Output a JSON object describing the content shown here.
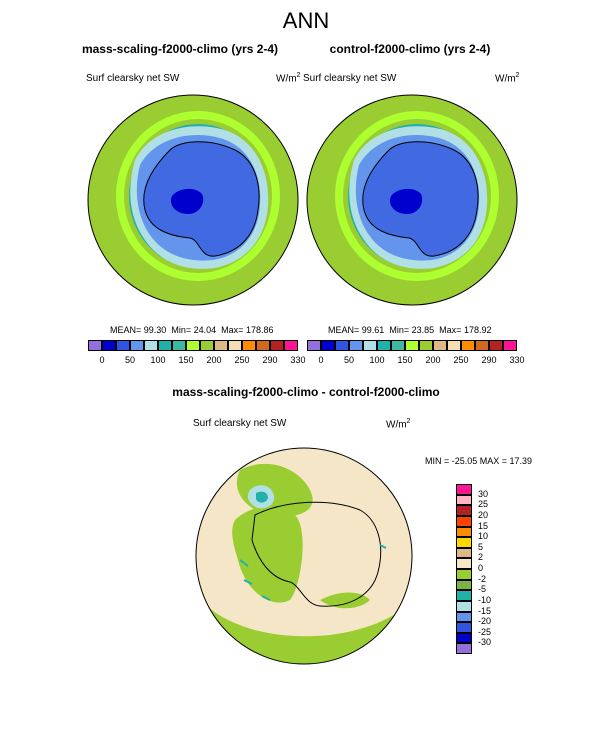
{
  "figure_title": "ANN",
  "panels": [
    {
      "title": "mass-scaling-f2000-climo (yrs 2-4)",
      "variable": "Surf clearsky net SW",
      "units_base": "W/m",
      "units_exp": "2",
      "stats": {
        "mean_label": "MEAN=",
        "mean": "99.30",
        "min_label": "Min=",
        "min": "24.04",
        "max_label": "Max=",
        "max": "178.86"
      }
    },
    {
      "title": "control-f2000-climo (yrs 2-4)",
      "variable": "Surf clearsky net SW",
      "units_base": "W/m",
      "units_exp": "2",
      "stats": {
        "mean_label": "MEAN=",
        "mean": "99.61",
        "min_label": "Min=",
        "min": "23.85",
        "max_label": "Max=",
        "max": "178.92"
      }
    }
  ],
  "abs_colorbar": {
    "colors": [
      "#9370db",
      "#0000cd",
      "#2f55e0",
      "#6495ed",
      "#b0e0e6",
      "#20b2aa",
      "#3cb9a0",
      "#adff2f",
      "#9acd32",
      "#deb887",
      "#f5deb3",
      "#ff8c00",
      "#d2691e",
      "#b22222",
      "#ff1493"
    ],
    "tick_labels": [
      "0",
      "50",
      "100",
      "150",
      "200",
      "250",
      "290",
      "330"
    ]
  },
  "diff_panel": {
    "title": "mass-scaling-f2000-climo - control-f2000-climo",
    "variable": "Surf clearsky net SW",
    "units_base": "W/m",
    "units_exp": "2",
    "minmax_text": "MIN = -25.05 MAX =  17.39"
  },
  "diff_colorbar": {
    "colors": [
      "#ff1493",
      "#ffb6c1",
      "#b22222",
      "#ff4500",
      "#ff8c00",
      "#ffd700",
      "#deb887",
      "#f5e6c8",
      "#9acd32",
      "#7cb342",
      "#20b2aa",
      "#b0e0e6",
      "#6495ed",
      "#2f55e0",
      "#0000cd",
      "#9370db"
    ],
    "tick_labels": [
      "30",
      "25",
      "20",
      "15",
      "10",
      "5",
      "2",
      "0",
      "-2",
      "-5",
      "-10",
      "-15",
      "-20",
      "-25",
      "-30"
    ]
  },
  "colors": {
    "ocean_outer": "#9acd32",
    "ocean_band": "#adff2f",
    "ocean_teal": "#20b2aa",
    "ice_pale": "#b0e0e6",
    "land_blue": "#4169e1",
    "land_dark": "#0000cd",
    "diff_bg": "#f5e6c8",
    "diff_green": "#9acd32"
  }
}
